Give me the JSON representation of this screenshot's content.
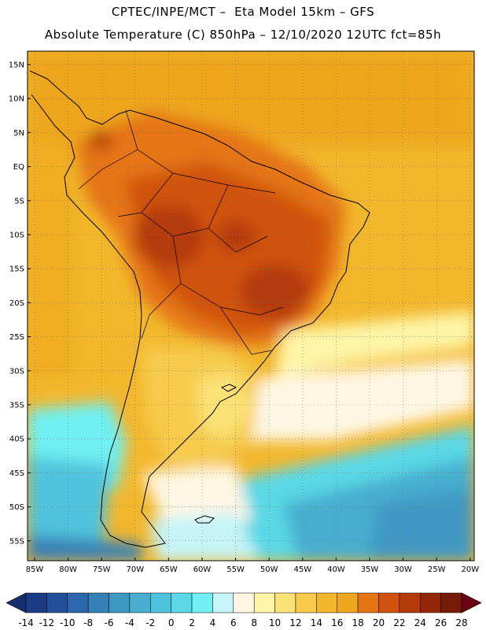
{
  "title": {
    "line1": "CPTEC/INPE/MCT –  Eta Model 15km – GFS",
    "line2": "Absolute Temperature (C) 850hPa – 12/10/2020 12UTC fct=85h"
  },
  "map": {
    "lat_labels": [
      "15N",
      "10N",
      "5N",
      "EQ",
      "5S",
      "10S",
      "15S",
      "20S",
      "25S",
      "30S",
      "35S",
      "40S",
      "45S",
      "50S",
      "55S"
    ],
    "lon_labels": [
      "85W",
      "80W",
      "75W",
      "70W",
      "65W",
      "60W",
      "55W",
      "50W",
      "45W",
      "40W",
      "35W",
      "30W",
      "25W",
      "20W"
    ]
  },
  "colorbar": {
    "labels": [
      "-14",
      "-12",
      "-10",
      "-8",
      "-6",
      "-4",
      "-2",
      "0",
      "2",
      "4",
      "6",
      "8",
      "10",
      "12",
      "14",
      "16",
      "18",
      "20",
      "22",
      "24",
      "26",
      "28"
    ],
    "colors": [
      "#1c3b85",
      "#234e9a",
      "#2c66ad",
      "#3780b7",
      "#3f97c3",
      "#47aed0",
      "#50c3dc",
      "#5ad8e6",
      "#70f0f2",
      "#c6f4f8",
      "#fff7e4",
      "#fff5a8",
      "#fbe276",
      "#f6cb4c",
      "#f2b72d",
      "#eda61d",
      "#e57512",
      "#d0520d",
      "#b43a0a",
      "#932607",
      "#741a06"
    ],
    "end_left_color": "#16306d",
    "end_right_color": "#6b0312"
  }
}
